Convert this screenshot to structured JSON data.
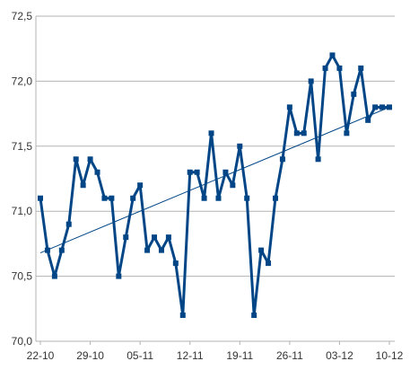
{
  "chart_data": {
    "type": "line",
    "title": "",
    "xlabel": "",
    "ylabel": "",
    "ylim": [
      70.0,
      72.5
    ],
    "grid": true,
    "legend": "none",
    "y_ticks": [
      70.0,
      70.5,
      71.0,
      71.5,
      72.0,
      72.5
    ],
    "y_tick_labels": [
      "70,0",
      "70,5",
      "71,0",
      "71,5",
      "72,0",
      "72,5"
    ],
    "x_tick_labels": [
      "22-10",
      "29-10",
      "05-11",
      "12-11",
      "19-11",
      "26-11",
      "03-12",
      "10-12"
    ],
    "x_tick_day_offsets": [
      0,
      7,
      14,
      21,
      28,
      35,
      42,
      49
    ],
    "series": [
      {
        "values": [
          71.1,
          70.7,
          70.5,
          70.7,
          70.9,
          71.4,
          71.2,
          71.4,
          71.3,
          71.1,
          71.1,
          70.5,
          70.8,
          71.1,
          71.2,
          70.7,
          70.8,
          70.7,
          70.8,
          70.6,
          70.2,
          71.3,
          71.3,
          71.1,
          71.6,
          71.1,
          71.3,
          71.2,
          71.5,
          71.1,
          70.2,
          70.7,
          70.6,
          71.1,
          71.4,
          71.8,
          71.6,
          71.6,
          72.0,
          71.4,
          72.1,
          72.2,
          72.1,
          71.6,
          71.9,
          72.1,
          71.7,
          71.8,
          71.8,
          71.8
        ],
        "color": "#004586"
      }
    ],
    "trendline": {
      "start": 70.68,
      "end": 71.8,
      "color": "#004586"
    }
  }
}
